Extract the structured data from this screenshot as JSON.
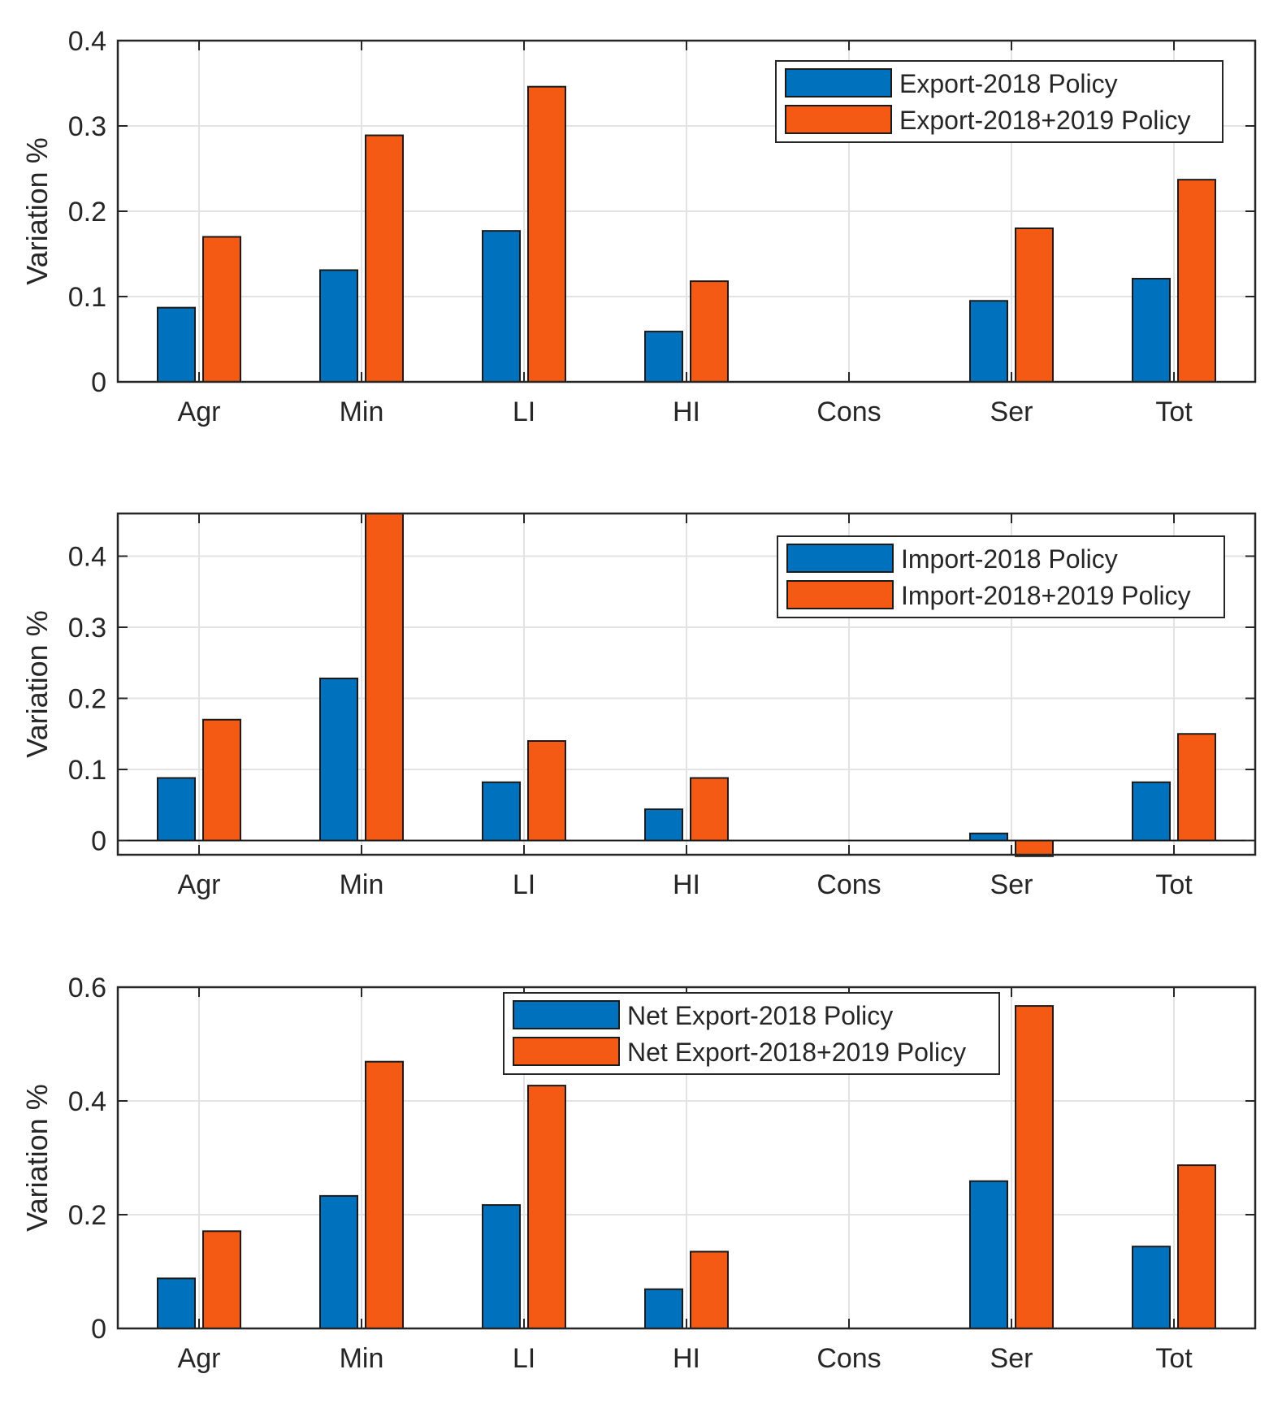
{
  "chart_data": [
    {
      "type": "bar",
      "title": "",
      "xlabel": "",
      "ylabel": "Variation %",
      "categories": [
        "Agr",
        "Min",
        "LI",
        "HI",
        "Cons",
        "Ser",
        "Tot"
      ],
      "ylim": [
        0,
        0.4
      ],
      "yticks": [
        0,
        0.1,
        0.2,
        0.3,
        0.4
      ],
      "ytick_labels": [
        "0",
        "0.1",
        "0.2",
        "0.3",
        "0.4"
      ],
      "grid": true,
      "legend_position": "top-right",
      "series": [
        {
          "name": "Export-2018 Policy",
          "color": "#0072BD",
          "values": [
            0.087,
            0.131,
            0.177,
            0.059,
            0,
            0.095,
            0.121
          ]
        },
        {
          "name": "Export-2018+2019 Policy",
          "color": "#F55A14",
          "values": [
            0.17,
            0.289,
            0.346,
            0.118,
            0,
            0.18,
            0.237
          ]
        }
      ]
    },
    {
      "type": "bar",
      "title": "",
      "xlabel": "",
      "ylabel": "Variation %",
      "categories": [
        "Agr",
        "Min",
        "LI",
        "HI",
        "Cons",
        "Ser",
        "Tot"
      ],
      "ylim": [
        -0.02,
        0.46
      ],
      "yticks": [
        0,
        0.1,
        0.2,
        0.3,
        0.4
      ],
      "ytick_labels": [
        "0",
        "0.1",
        "0.2",
        "0.3",
        "0.4"
      ],
      "grid": true,
      "legend_position": "top-right",
      "series": [
        {
          "name": "Import-2018 Policy",
          "color": "#0072BD",
          "values": [
            0.088,
            0.228,
            0.082,
            0.044,
            0,
            0.01,
            0.082
          ]
        },
        {
          "name": "Import-2018+2019 Policy",
          "color": "#F55A14",
          "values": [
            0.17,
            0.465,
            0.14,
            0.088,
            0,
            -0.022,
            0.15
          ]
        }
      ]
    },
    {
      "type": "bar",
      "title": "",
      "xlabel": "",
      "ylabel": "Variation %",
      "categories": [
        "Agr",
        "Min",
        "LI",
        "HI",
        "Cons",
        "Ser",
        "Tot"
      ],
      "ylim": [
        0,
        0.6
      ],
      "yticks": [
        0,
        0.2,
        0.4,
        0.6
      ],
      "ytick_labels": [
        "0",
        "0.2",
        "0.4",
        "0.6"
      ],
      "grid": true,
      "legend_position": "top-center",
      "series": [
        {
          "name": "Net Export-2018 Policy",
          "color": "#0072BD",
          "values": [
            0.088,
            0.233,
            0.217,
            0.069,
            0,
            0.259,
            0.144
          ]
        },
        {
          "name": "Net Export-2018+2019 Policy",
          "color": "#F55A14",
          "values": [
            0.171,
            0.469,
            0.427,
            0.135,
            0,
            0.567,
            0.287
          ]
        }
      ]
    }
  ]
}
